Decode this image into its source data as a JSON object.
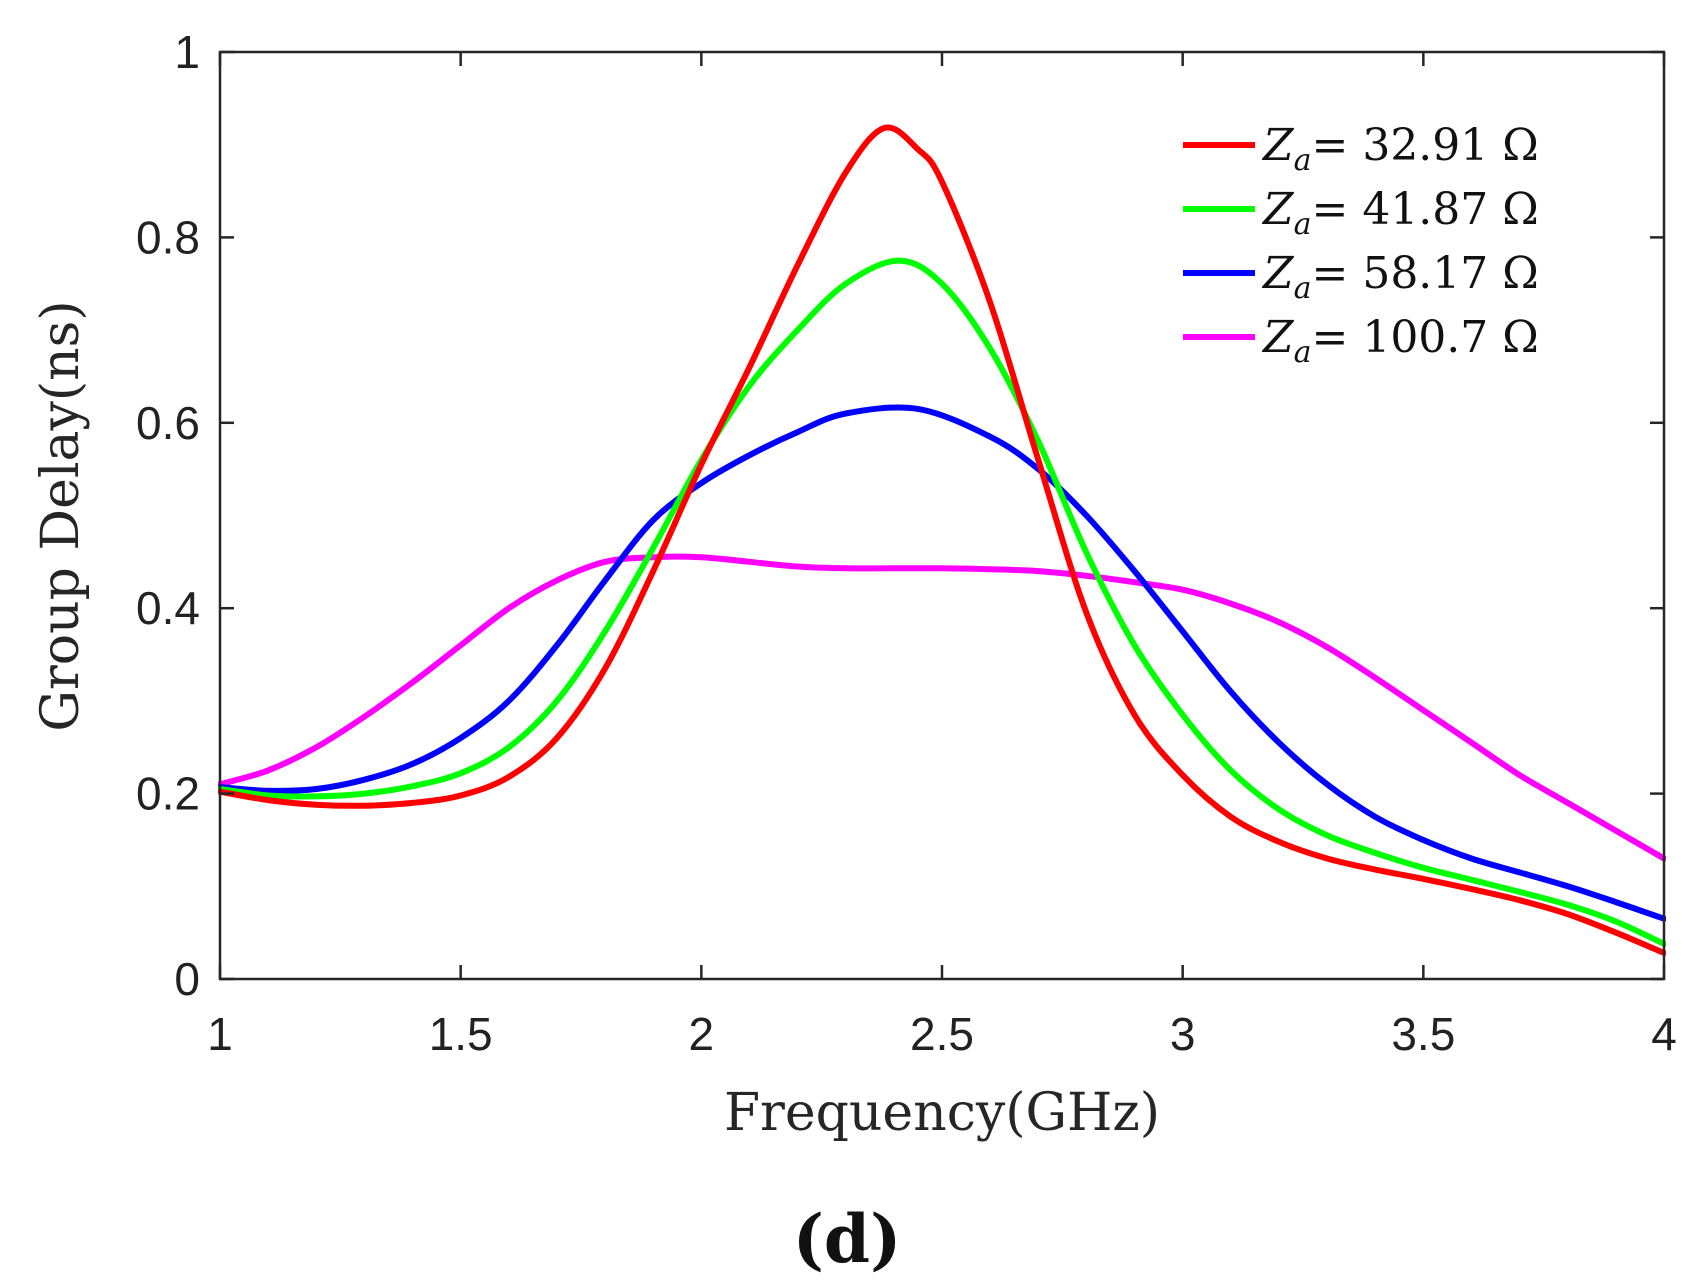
{
  "chart_data": {
    "type": "line",
    "title": "",
    "xlabel": "Frequency(GHz)",
    "ylabel": "Group Delay(ns)",
    "xlim": [
      1,
      4
    ],
    "ylim": [
      0,
      1
    ],
    "xticks": [
      1,
      1.5,
      2,
      2.5,
      3,
      3.5,
      4
    ],
    "yticks": [
      0,
      0.2,
      0.4,
      0.6,
      0.8,
      1
    ],
    "xtick_labels": [
      "1",
      "1.5",
      "2",
      "2.5",
      "3",
      "3.5",
      "4"
    ],
    "ytick_labels": [
      "0",
      "0.2",
      "0.4",
      "0.6",
      "0.8",
      "1"
    ],
    "grid": false,
    "legend_position": "top-right",
    "panel_label": "(d)",
    "series": [
      {
        "name": "Za= 32.91 Ω",
        "symbol": "Z",
        "subscript": "a",
        "value_text": "= 32.91 Ω",
        "color": "#ff0000",
        "x": [
          1.0,
          1.1,
          1.2,
          1.3,
          1.4,
          1.5,
          1.6,
          1.7,
          1.8,
          1.9,
          2.0,
          2.1,
          2.2,
          2.3,
          2.38,
          2.45,
          2.5,
          2.6,
          2.7,
          2.8,
          2.9,
          3.0,
          3.1,
          3.2,
          3.3,
          3.4,
          3.5,
          3.6,
          3.7,
          3.8,
          3.9,
          4.0
        ],
        "y": [
          0.202,
          0.193,
          0.188,
          0.187,
          0.19,
          0.198,
          0.218,
          0.26,
          0.335,
          0.44,
          0.555,
          0.66,
          0.77,
          0.87,
          0.918,
          0.895,
          0.86,
          0.73,
          0.56,
          0.395,
          0.285,
          0.22,
          0.175,
          0.148,
          0.13,
          0.118,
          0.108,
          0.097,
          0.085,
          0.07,
          0.05,
          0.028
        ]
      },
      {
        "name": "Za= 41.87 Ω",
        "symbol": "Z",
        "subscript": "a",
        "value_text": "= 41.87 Ω",
        "color": "#00ff00",
        "x": [
          1.0,
          1.1,
          1.2,
          1.3,
          1.4,
          1.5,
          1.6,
          1.7,
          1.8,
          1.9,
          2.0,
          2.1,
          2.2,
          2.3,
          2.41,
          2.5,
          2.6,
          2.7,
          2.8,
          2.9,
          3.0,
          3.1,
          3.2,
          3.3,
          3.4,
          3.5,
          3.6,
          3.7,
          3.8,
          3.9,
          4.0
        ],
        "y": [
          0.205,
          0.198,
          0.197,
          0.2,
          0.208,
          0.222,
          0.25,
          0.3,
          0.375,
          0.465,
          0.56,
          0.64,
          0.7,
          0.75,
          0.775,
          0.75,
          0.68,
          0.58,
          0.46,
          0.36,
          0.285,
          0.225,
          0.183,
          0.155,
          0.136,
          0.12,
          0.107,
          0.094,
          0.08,
          0.062,
          0.038
        ]
      },
      {
        "name": "Za= 58.17 Ω",
        "symbol": "Z",
        "subscript": "a",
        "value_text": "= 58.17 Ω",
        "color": "#0000ff",
        "x": [
          1.0,
          1.1,
          1.2,
          1.3,
          1.4,
          1.5,
          1.6,
          1.7,
          1.8,
          1.9,
          2.0,
          2.1,
          2.2,
          2.3,
          2.45,
          2.6,
          2.7,
          2.8,
          2.9,
          3.0,
          3.1,
          3.2,
          3.3,
          3.4,
          3.5,
          3.6,
          3.7,
          3.8,
          3.9,
          4.0
        ],
        "y": [
          0.207,
          0.203,
          0.205,
          0.215,
          0.232,
          0.26,
          0.3,
          0.36,
          0.43,
          0.495,
          0.535,
          0.565,
          0.59,
          0.61,
          0.615,
          0.585,
          0.55,
          0.5,
          0.44,
          0.375,
          0.31,
          0.255,
          0.21,
          0.175,
          0.15,
          0.13,
          0.115,
          0.1,
          0.083,
          0.065
        ]
      },
      {
        "name": "Za= 100.7 Ω",
        "symbol": "Z",
        "subscript": "a",
        "value_text": "= 100.7 Ω",
        "color": "#ff00ff",
        "x": [
          1.0,
          1.1,
          1.2,
          1.3,
          1.4,
          1.5,
          1.6,
          1.7,
          1.8,
          1.9,
          2.0,
          2.1,
          2.2,
          2.3,
          2.4,
          2.5,
          2.6,
          2.7,
          2.8,
          2.9,
          3.0,
          3.1,
          3.2,
          3.3,
          3.4,
          3.5,
          3.6,
          3.7,
          3.8,
          3.9,
          4.0
        ],
        "y": [
          0.21,
          0.225,
          0.25,
          0.283,
          0.32,
          0.36,
          0.4,
          0.43,
          0.45,
          0.455,
          0.455,
          0.45,
          0.445,
          0.443,
          0.443,
          0.443,
          0.442,
          0.44,
          0.435,
          0.428,
          0.42,
          0.405,
          0.385,
          0.358,
          0.325,
          0.29,
          0.255,
          0.22,
          0.19,
          0.16,
          0.13
        ]
      }
    ]
  }
}
